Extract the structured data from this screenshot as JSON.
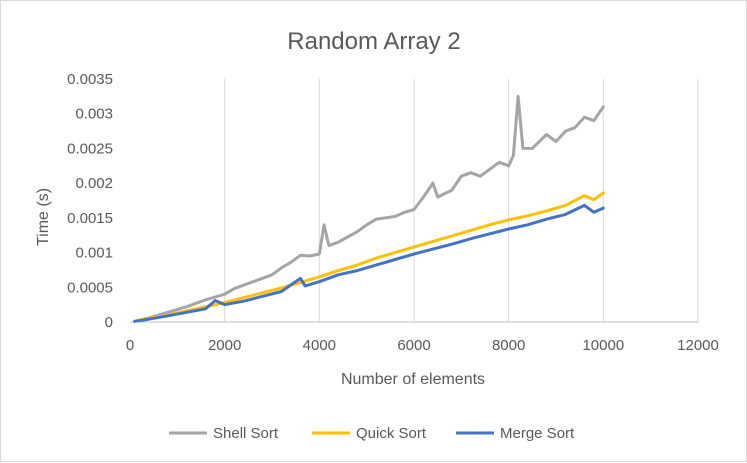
{
  "chart_data": {
    "type": "line",
    "title": "Random Array 2",
    "xlabel": "Number of elements",
    "ylabel": "Time (s)",
    "xlim": [
      0,
      12000
    ],
    "ylim": [
      0,
      0.0035
    ],
    "xticks": [
      "0",
      "2000",
      "4000",
      "6000",
      "8000",
      "10000",
      "12000"
    ],
    "yticks": [
      "0",
      "0.0005",
      "0.001",
      "0.0015",
      "0.002",
      "0.0025",
      "0.003",
      "0.0035"
    ],
    "grid": "vertical",
    "legend": "bottom",
    "series": [
      {
        "name": "Shell Sort",
        "color": "#a5a5a5",
        "points": [
          [
            100,
            1e-05
          ],
          [
            400,
            6e-05
          ],
          [
            800,
            0.00014
          ],
          [
            1200,
            0.00022
          ],
          [
            1600,
            0.00032
          ],
          [
            2000,
            0.0004
          ],
          [
            2200,
            0.00048
          ],
          [
            2600,
            0.00058
          ],
          [
            3000,
            0.00068
          ],
          [
            3200,
            0.00078
          ],
          [
            3400,
            0.00086
          ],
          [
            3600,
            0.00096
          ],
          [
            3800,
            0.00095
          ],
          [
            4000,
            0.00098
          ],
          [
            4100,
            0.0014
          ],
          [
            4200,
            0.0011
          ],
          [
            4400,
            0.00115
          ],
          [
            4800,
            0.0013
          ],
          [
            5000,
            0.0014
          ],
          [
            5200,
            0.00148
          ],
          [
            5600,
            0.00152
          ],
          [
            5800,
            0.00158
          ],
          [
            6000,
            0.00162
          ],
          [
            6200,
            0.0018
          ],
          [
            6400,
            0.002
          ],
          [
            6500,
            0.0018
          ],
          [
            6800,
            0.0019
          ],
          [
            7000,
            0.0021
          ],
          [
            7200,
            0.00215
          ],
          [
            7400,
            0.0021
          ],
          [
            7600,
            0.0022
          ],
          [
            7800,
            0.0023
          ],
          [
            8000,
            0.00225
          ],
          [
            8100,
            0.0024
          ],
          [
            8200,
            0.00325
          ],
          [
            8300,
            0.0025
          ],
          [
            8500,
            0.0025
          ],
          [
            8800,
            0.0027
          ],
          [
            9000,
            0.0026
          ],
          [
            9200,
            0.00275
          ],
          [
            9400,
            0.0028
          ],
          [
            9600,
            0.00295
          ],
          [
            9800,
            0.0029
          ],
          [
            10000,
            0.0031
          ]
        ]
      },
      {
        "name": "Quick Sort",
        "color": "#ffc000",
        "points": [
          [
            100,
            1e-05
          ],
          [
            400,
            5e-05
          ],
          [
            800,
            0.0001
          ],
          [
            1200,
            0.00016
          ],
          [
            1600,
            0.00022
          ],
          [
            2000,
            0.00028
          ],
          [
            2400,
            0.00035
          ],
          [
            2800,
            0.00042
          ],
          [
            3200,
            0.00049
          ],
          [
            3600,
            0.00057
          ],
          [
            4000,
            0.00065
          ],
          [
            4400,
            0.00074
          ],
          [
            4800,
            0.00082
          ],
          [
            5200,
            0.00092
          ],
          [
            5600,
            0.001
          ],
          [
            6000,
            0.00108
          ],
          [
            6400,
            0.00116
          ],
          [
            6800,
            0.00124
          ],
          [
            7200,
            0.00132
          ],
          [
            7600,
            0.0014
          ],
          [
            8000,
            0.00147
          ],
          [
            8400,
            0.00153
          ],
          [
            8800,
            0.0016
          ],
          [
            9200,
            0.00168
          ],
          [
            9600,
            0.00182
          ],
          [
            9800,
            0.00176
          ],
          [
            10000,
            0.00186
          ]
        ]
      },
      {
        "name": "Merge Sort",
        "color": "#4472c4",
        "points": [
          [
            100,
            1e-05
          ],
          [
            400,
            4e-05
          ],
          [
            800,
            9e-05
          ],
          [
            1200,
            0.00014
          ],
          [
            1600,
            0.00019
          ],
          [
            1800,
            0.00031
          ],
          [
            2000,
            0.00025
          ],
          [
            2400,
            0.0003
          ],
          [
            2800,
            0.00037
          ],
          [
            3200,
            0.00044
          ],
          [
            3600,
            0.00063
          ],
          [
            3700,
            0.00052
          ],
          [
            4000,
            0.00058
          ],
          [
            4400,
            0.00068
          ],
          [
            4800,
            0.00074
          ],
          [
            5200,
            0.00082
          ],
          [
            5600,
            0.0009
          ],
          [
            6000,
            0.00098
          ],
          [
            6400,
            0.00105
          ],
          [
            6800,
            0.00112
          ],
          [
            7200,
            0.0012
          ],
          [
            7600,
            0.00127
          ],
          [
            8000,
            0.00134
          ],
          [
            8400,
            0.0014
          ],
          [
            8800,
            0.00148
          ],
          [
            9200,
            0.00155
          ],
          [
            9600,
            0.00168
          ],
          [
            9800,
            0.00158
          ],
          [
            10000,
            0.00164
          ]
        ]
      }
    ]
  }
}
